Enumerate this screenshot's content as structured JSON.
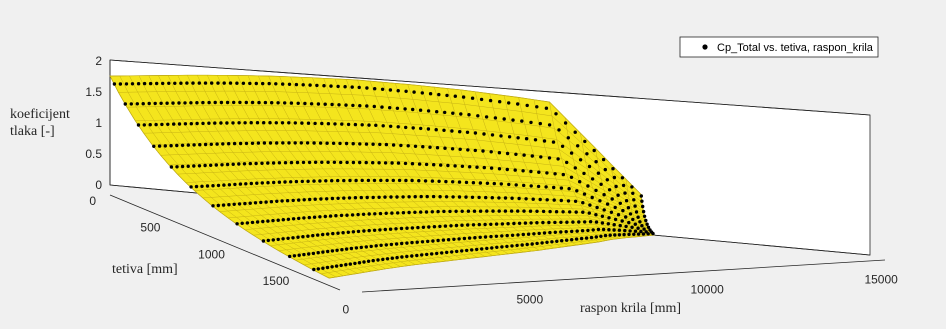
{
  "chart_data": {
    "type": "surface",
    "title": "",
    "xlabel": "raspon krila [mm]",
    "ylabel": "tetiva [mm]",
    "zlabel": [
      "koeficijent",
      "tlaka [-]"
    ],
    "xlim": [
      0,
      15000
    ],
    "ylim": [
      0,
      1800
    ],
    "zlim": [
      0,
      2
    ],
    "x_ticks": [
      "0",
      "5000",
      "10000",
      "15000"
    ],
    "y_ticks": [
      "0",
      "500",
      "1000",
      "1500"
    ],
    "z_ticks": [
      "0",
      "0.5",
      "1",
      "1.5",
      "2"
    ],
    "grid": "on",
    "legend_position": "top-right",
    "series": [
      {
        "name": "Cp_Total vs. tetiva, raspon_krila",
        "kind": "scatter",
        "color": "#000000",
        "marker": "dot"
      },
      {
        "kind": "surface",
        "color": "#f4e51d"
      }
    ],
    "leading_edge_span_mm": [
      0,
      1000,
      2000,
      3000,
      4000,
      5000,
      6000,
      7000,
      8000,
      9000,
      10000,
      11000
    ],
    "leading_edge_chord_mm": [
      0,
      30,
      60,
      100,
      150,
      220,
      300,
      420,
      560,
      740,
      950,
      1150
    ],
    "trailing_edge_span_mm": [
      0,
      1000,
      2000,
      3000,
      4000,
      5000,
      6000,
      7000,
      8000,
      9000,
      10000,
      11000
    ],
    "trailing_edge_chord_mm": [
      1700,
      1650,
      1600,
      1560,
      1530,
      1500,
      1470,
      1440,
      1400,
      1360,
      1300,
      1250
    ]
  }
}
